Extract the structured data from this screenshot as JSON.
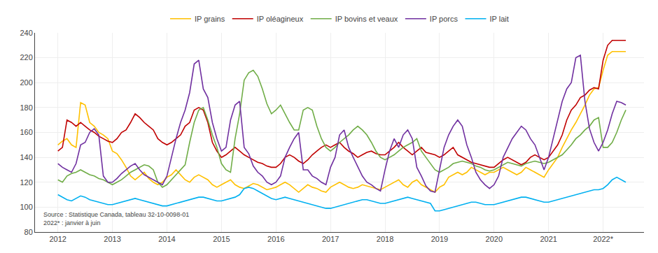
{
  "chart_data": {
    "type": "line",
    "annotations": [
      "Source : Statistique Canada, tableau 32-10-0098-01\n2022* : janvier à juin"
    ],
    "x": [
      2012,
      2012.083333,
      2012.166667,
      2012.25,
      2012.333333,
      2012.416667,
      2012.5,
      2012.583333,
      2012.666667,
      2012.75,
      2012.833333,
      2012.916667,
      2013,
      2013.083333,
      2013.166667,
      2013.25,
      2013.333333,
      2013.416667,
      2013.5,
      2013.583333,
      2013.666667,
      2013.75,
      2013.833333,
      2013.916667,
      2014,
      2014.083333,
      2014.166667,
      2014.25,
      2014.333333,
      2014.416667,
      2014.5,
      2014.583333,
      2014.666667,
      2014.75,
      2014.833333,
      2014.916667,
      2015,
      2015.083333,
      2015.166667,
      2015.25,
      2015.333333,
      2015.416667,
      2015.5,
      2015.583333,
      2015.666667,
      2015.75,
      2015.833333,
      2015.916667,
      2016,
      2016.083333,
      2016.166667,
      2016.25,
      2016.333333,
      2016.416667,
      2016.5,
      2016.583333,
      2016.666667,
      2016.75,
      2016.833333,
      2016.916667,
      2017,
      2017.083333,
      2017.166667,
      2017.25,
      2017.333333,
      2017.416667,
      2017.5,
      2017.583333,
      2017.666667,
      2017.75,
      2017.833333,
      2017.916667,
      2018,
      2018.083333,
      2018.166667,
      2018.25,
      2018.333333,
      2018.416667,
      2018.5,
      2018.583333,
      2018.666667,
      2018.75,
      2018.833333,
      2018.916667,
      2019,
      2019.083333,
      2019.166667,
      2019.25,
      2019.333333,
      2019.416667,
      2019.5,
      2019.583333,
      2019.666667,
      2019.75,
      2019.833333,
      2019.916667,
      2020,
      2020.083333,
      2020.166667,
      2020.25,
      2020.333333,
      2020.416667,
      2020.5,
      2020.583333,
      2020.666667,
      2020.75,
      2020.833333,
      2020.916667,
      2021,
      2021.083333,
      2021.166667,
      2021.25,
      2021.333333,
      2021.416667,
      2021.5,
      2021.583333,
      2021.666667,
      2021.75,
      2021.833333,
      2021.916667,
      2022,
      2022.083333,
      2022.166667,
      2022.25,
      2022.333333,
      2022.416667
    ],
    "series": [
      {
        "name": "IP grains",
        "color": "#FFC000",
        "values": [
          150,
          153,
          155,
          150,
          148,
          184,
          182,
          168,
          165,
          160,
          158,
          155,
          145,
          143,
          138,
          132,
          125,
          122,
          125,
          128,
          123,
          120,
          118,
          120,
          124,
          126,
          130,
          126,
          122,
          120,
          124,
          126,
          124,
          122,
          118,
          116,
          118,
          120,
          122,
          118,
          116,
          115,
          117,
          119,
          118,
          116,
          114,
          115,
          116,
          118,
          120,
          118,
          115,
          112,
          115,
          118,
          116,
          115,
          113,
          112,
          116,
          118,
          120,
          118,
          116,
          115,
          116,
          118,
          117,
          116,
          115,
          114,
          116,
          118,
          120,
          122,
          118,
          116,
          120,
          122,
          118,
          116,
          114,
          112,
          116,
          118,
          124,
          126,
          128,
          126,
          128,
          132,
          130,
          128,
          126,
          128,
          128,
          130,
          132,
          130,
          128,
          126,
          128,
          132,
          130,
          128,
          126,
          124,
          130,
          135,
          140,
          148,
          155,
          162,
          168,
          175,
          182,
          190,
          195,
          196,
          210,
          222,
          225,
          225,
          225,
          225
        ]
      },
      {
        "name": "IP oléagineux",
        "color": "#C00000",
        "values": [
          145,
          148,
          170,
          168,
          165,
          168,
          165,
          162,
          160,
          157,
          155,
          153,
          152,
          155,
          160,
          162,
          168,
          175,
          172,
          168,
          165,
          162,
          155,
          152,
          150,
          152,
          155,
          158,
          165,
          168,
          178,
          180,
          178,
          168,
          152,
          145,
          140,
          142,
          145,
          148,
          145,
          142,
          140,
          138,
          136,
          135,
          133,
          132,
          132,
          135,
          140,
          142,
          140,
          137,
          135,
          138,
          142,
          145,
          148,
          150,
          148,
          150,
          152,
          148,
          145,
          143,
          140,
          142,
          144,
          145,
          143,
          142,
          142,
          145,
          148,
          152,
          148,
          145,
          142,
          145,
          148,
          144,
          143,
          142,
          140,
          142,
          145,
          148,
          142,
          140,
          138,
          136,
          135,
          134,
          133,
          132,
          132,
          135,
          138,
          140,
          138,
          136,
          134,
          136,
          140,
          142,
          140,
          138,
          140,
          145,
          150,
          158,
          170,
          178,
          182,
          188,
          190,
          194,
          196,
          195,
          218,
          230,
          234,
          234,
          234,
          234
        ]
      },
      {
        "name": "IP bovins et veaux",
        "color": "#70AD47",
        "values": [
          122,
          120,
          125,
          127,
          128,
          130,
          128,
          126,
          125,
          123,
          122,
          120,
          118,
          120,
          122,
          125,
          128,
          130,
          132,
          134,
          133,
          130,
          120,
          116,
          118,
          122,
          126,
          130,
          134,
          152,
          168,
          178,
          180,
          170,
          158,
          148,
          135,
          130,
          128,
          155,
          175,
          202,
          208,
          210,
          205,
          195,
          183,
          175,
          178,
          182,
          175,
          168,
          162,
          162,
          178,
          180,
          178,
          165,
          155,
          148,
          145,
          148,
          152,
          155,
          158,
          162,
          165,
          162,
          158,
          152,
          145,
          140,
          138,
          140,
          142,
          145,
          148,
          150,
          152,
          155,
          145,
          140,
          135,
          130,
          128,
          130,
          132,
          135,
          136,
          137,
          136,
          135,
          133,
          132,
          130,
          129,
          130,
          132,
          134,
          136,
          135,
          134,
          133,
          135,
          136,
          137,
          136,
          135,
          136,
          138,
          140,
          142,
          146,
          150,
          155,
          158,
          162,
          165,
          170,
          172,
          148,
          148,
          152,
          160,
          170,
          178
        ]
      },
      {
        "name": "IP porcs",
        "color": "#7030A0",
        "values": [
          135,
          132,
          130,
          128,
          135,
          150,
          152,
          160,
          163,
          158,
          125,
          120,
          120,
          123,
          127,
          130,
          133,
          135,
          130,
          126,
          124,
          122,
          120,
          118,
          125,
          140,
          155,
          168,
          178,
          192,
          215,
          218,
          195,
          188,
          168,
          155,
          145,
          148,
          170,
          182,
          185,
          148,
          143,
          133,
          128,
          125,
          120,
          118,
          120,
          125,
          140,
          148,
          155,
          160,
          130,
          130,
          125,
          123,
          120,
          118,
          132,
          140,
          158,
          162,
          148,
          140,
          132,
          125,
          120,
          118,
          115,
          113,
          130,
          145,
          155,
          148,
          158,
          162,
          155,
          132,
          125,
          117,
          113,
          112,
          130,
          148,
          158,
          165,
          170,
          165,
          150,
          140,
          128,
          122,
          118,
          115,
          118,
          125,
          140,
          148,
          155,
          160,
          165,
          162,
          155,
          150,
          140,
          130,
          140,
          155,
          170,
          185,
          195,
          200,
          220,
          222,
          185,
          163,
          152,
          145,
          152,
          162,
          175,
          185,
          184,
          182
        ]
      },
      {
        "name": "IP lait",
        "color": "#00B0F0",
        "values": [
          110,
          108,
          106,
          105,
          107,
          109,
          108,
          106,
          105,
          104,
          103,
          102,
          102,
          103,
          104,
          105,
          106,
          107,
          106,
          105,
          104,
          103,
          102,
          101,
          101,
          102,
          103,
          104,
          105,
          106,
          107,
          108,
          108,
          107,
          106,
          105,
          105,
          106,
          107,
          108,
          110,
          115,
          116,
          115,
          113,
          111,
          109,
          107,
          106,
          107,
          108,
          107,
          106,
          105,
          104,
          103,
          102,
          101,
          100,
          99,
          99,
          100,
          101,
          102,
          103,
          104,
          105,
          106,
          106,
          105,
          104,
          103,
          103,
          104,
          105,
          106,
          107,
          108,
          107,
          106,
          105,
          104,
          103,
          97,
          97,
          98,
          99,
          100,
          101,
          102,
          103,
          104,
          104,
          103,
          102,
          102,
          102,
          103,
          104,
          105,
          106,
          107,
          108,
          108,
          107,
          106,
          105,
          104,
          104,
          105,
          106,
          107,
          108,
          109,
          110,
          111,
          112,
          113,
          114,
          114,
          115,
          118,
          122,
          124,
          122,
          120
        ]
      }
    ],
    "xlim": [
      2011.58,
      2022.75
    ],
    "xticks": [
      2012,
      2013,
      2014,
      2015,
      2016,
      2017,
      2018,
      2019,
      2020,
      2021,
      {
        "value": 2022,
        "label": "2022*"
      }
    ],
    "ylim": [
      80,
      240
    ],
    "yticks": [
      80,
      100,
      120,
      140,
      160,
      180,
      200,
      220,
      240
    ],
    "grid": true,
    "legend": "top"
  }
}
